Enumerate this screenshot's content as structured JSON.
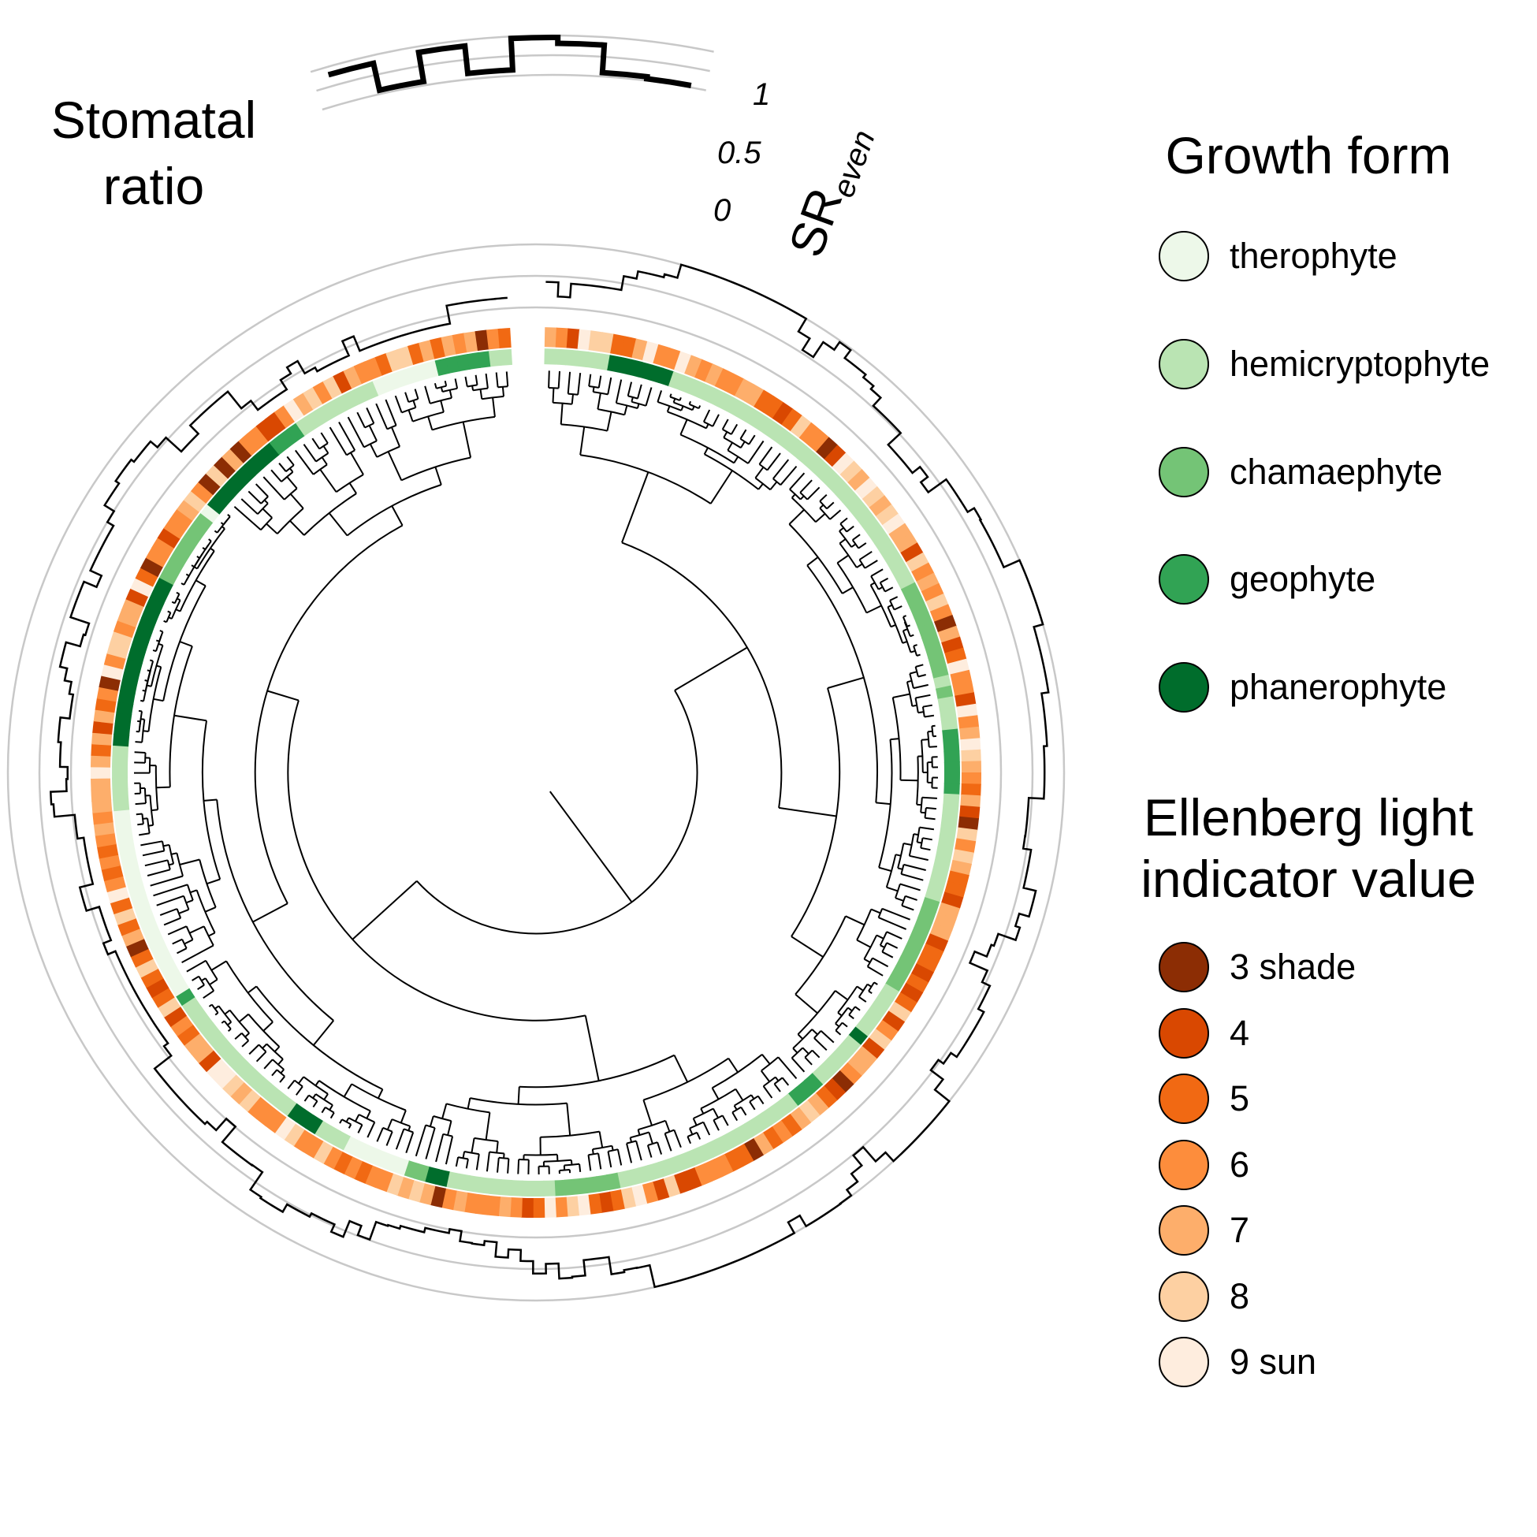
{
  "figure": {
    "inset_title_line1": "Stomatal",
    "inset_title_line2": "ratio"
  },
  "inset": {
    "axis_label_main": "SR",
    "axis_label_sub": "even",
    "tick_labels": [
      "1",
      "0.5",
      "0"
    ]
  },
  "legends": {
    "growth_form": {
      "title": "Growth form",
      "items": [
        {
          "label": "therophyte",
          "color": "#edf8e9"
        },
        {
          "label": "hemicryptophyte",
          "color": "#bae4b3"
        },
        {
          "label": "chamaephyte",
          "color": "#74c476"
        },
        {
          "label": "geophyte",
          "color": "#31a354"
        },
        {
          "label": "phanerophyte",
          "color": "#006d2c"
        }
      ]
    },
    "ellenberg": {
      "title_line1": "Ellenberg light",
      "title_line2": "indicator value",
      "items": [
        {
          "label": "3 shade",
          "color": "#8c2d04"
        },
        {
          "label": "4",
          "color": "#d94801"
        },
        {
          "label": "5",
          "color": "#f16913"
        },
        {
          "label": "6",
          "color": "#fd8d3c"
        },
        {
          "label": "7",
          "color": "#fdae6b"
        },
        {
          "label": "8",
          "color": "#fdd0a2"
        },
        {
          "label": "9 sun",
          "color": "#feedde"
        }
      ]
    }
  },
  "chart_data": {
    "type": "heatmap",
    "layout": "circular phylogeny with trait rings",
    "outer_track": {
      "variable": "SR even",
      "ylim": [
        0,
        1
      ],
      "ticks": [
        0,
        0.5,
        1
      ],
      "inset_profile": [
        0.8,
        0.8,
        0.1,
        0.1,
        0.85,
        0.85,
        0.15,
        0.15,
        0.95,
        0.95,
        0.8,
        0.8,
        0.1,
        0.1,
        0.05,
        0.08
      ]
    },
    "rings": [
      "growth form",
      "Ellenberg light indicator value"
    ],
    "growth_form_categories": [
      "therophyte",
      "hemicryptophyte",
      "chamaephyte",
      "geophyte",
      "phanerophyte"
    ],
    "ellenberg_categories": [
      "3 shade",
      "4",
      "5",
      "6",
      "7",
      "8",
      "9 sun"
    ]
  }
}
